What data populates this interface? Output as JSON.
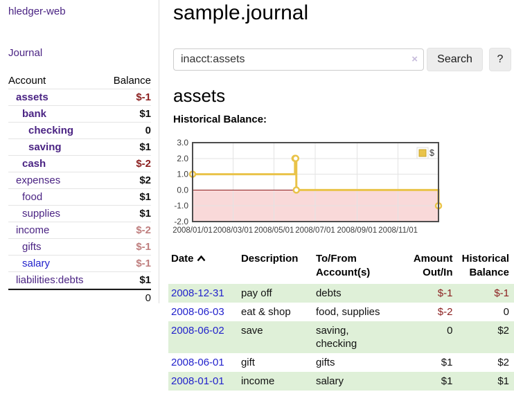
{
  "app": {
    "title": "hledger-web"
  },
  "sidebar": {
    "journal_link": "Journal",
    "accounts_table": {
      "headers": {
        "account": "Account",
        "balance": "Balance"
      },
      "rows": [
        {
          "name": "assets",
          "level": 1,
          "bold": true,
          "link_color": "purple",
          "balance": "$-1",
          "balance_style": "neg-strong"
        },
        {
          "name": "bank",
          "level": 2,
          "bold": true,
          "link_color": "purple",
          "balance": "$1",
          "balance_style": "pos"
        },
        {
          "name": "checking",
          "level": 3,
          "bold": true,
          "link_color": "purple",
          "balance": "0",
          "balance_style": "pos"
        },
        {
          "name": "saving",
          "level": 3,
          "bold": true,
          "link_color": "purple",
          "balance": "$1",
          "balance_style": "pos"
        },
        {
          "name": "cash",
          "level": 2,
          "bold": true,
          "link_color": "purple",
          "balance": "$-2",
          "balance_style": "neg-strong"
        },
        {
          "name": "expenses",
          "level": 1,
          "bold": false,
          "link_color": "purple",
          "balance": "$2",
          "balance_style": "pos"
        },
        {
          "name": "food",
          "level": 2,
          "bold": false,
          "link_color": "purple",
          "balance": "$1",
          "balance_style": "pos"
        },
        {
          "name": "supplies",
          "level": 2,
          "bold": false,
          "link_color": "purple",
          "balance": "$1",
          "balance_style": "pos"
        },
        {
          "name": "income",
          "level": 1,
          "bold": false,
          "link_color": "purple",
          "balance": "$-2",
          "balance_style": "neg-soft"
        },
        {
          "name": "gifts",
          "level": 2,
          "bold": false,
          "link_color": "purple",
          "balance": "$-1",
          "balance_style": "neg-soft"
        },
        {
          "name": "salary",
          "level": 2,
          "bold": false,
          "link_color": "blue",
          "balance": "$-1",
          "balance_style": "neg-soft"
        },
        {
          "name": "liabilities:debts",
          "level": 1,
          "bold": false,
          "link_color": "purple",
          "balance": "$1",
          "balance_style": "pos"
        }
      ],
      "total": "0"
    }
  },
  "header": {
    "title": "sample.journal"
  },
  "search": {
    "value": "inacct:assets",
    "clear_icon": "×",
    "search_label": "Search",
    "help_label": "?"
  },
  "account_page": {
    "heading": "assets",
    "chart_label": "Historical Balance:"
  },
  "chart_data": {
    "type": "line",
    "step": true,
    "title": "Historical Balance",
    "series": [
      {
        "name": "$",
        "color": "#e9c349",
        "points": [
          [
            "2008-01-01",
            1
          ],
          [
            "2008-06-01",
            2
          ],
          [
            "2008-06-02",
            2
          ],
          [
            "2008-06-03",
            0
          ],
          [
            "2008-12-31",
            -1
          ]
        ]
      }
    ],
    "x_range": [
      "2008-01-01",
      "2008-12-31"
    ],
    "x_ticks": [
      {
        "date": "2008-01-01",
        "label": "2008/01/01"
      },
      {
        "date": "2008-03-01",
        "label": "2008/03/01"
      },
      {
        "date": "2008-05-01",
        "label": "2008/05/01"
      },
      {
        "date": "2008-07-01",
        "label": "2008/07/01"
      },
      {
        "date": "2008-09-01",
        "label": "2008/09/01"
      },
      {
        "date": "2008-11-01",
        "label": "2008/11/01"
      }
    ],
    "ylim": [
      -2,
      3
    ],
    "y_ticks": [
      {
        "value": 3,
        "label": "3.0"
      },
      {
        "value": 2,
        "label": "2.0"
      },
      {
        "value": 1,
        "label": "1.0"
      },
      {
        "value": 0,
        "label": "0.0"
      },
      {
        "value": -1,
        "label": "-1.0"
      },
      {
        "value": -2,
        "label": "-2.0"
      }
    ],
    "legend": {
      "label": "$",
      "position": "top-right"
    },
    "grid": true,
    "negative_region_color": "#f9d9d9",
    "zero_line_color": "#8b1a1a",
    "grid_color": "#e3e3e3",
    "border_color": "#4d4d4d"
  },
  "transactions": {
    "columns": [
      {
        "line1": "Date",
        "line2": "",
        "align": "l",
        "sorted": "asc"
      },
      {
        "line1": "Description",
        "line2": "",
        "align": "l"
      },
      {
        "line1": "To/From",
        "line2": "Account(s)",
        "align": "l"
      },
      {
        "line1": "Amount",
        "line2": "Out/In",
        "align": "r"
      },
      {
        "line1": "Historical",
        "line2": "Balance",
        "align": "r"
      }
    ],
    "rows": [
      {
        "date": "2008-12-31",
        "description": "pay off",
        "accounts": "debts",
        "amount": "$-1",
        "balance": "$-1"
      },
      {
        "date": "2008-06-03",
        "description": "eat & shop",
        "accounts": "food, supplies",
        "amount": "$-2",
        "balance": "0"
      },
      {
        "date": "2008-06-02",
        "description": "save",
        "accounts": "saving, checking",
        "amount": "0",
        "balance": "$2"
      },
      {
        "date": "2008-06-01",
        "description": "gift",
        "accounts": "gifts",
        "amount": "$1",
        "balance": "$2"
      },
      {
        "date": "2008-01-01",
        "description": "income",
        "accounts": "salary",
        "amount": "$1",
        "balance": "$1"
      }
    ]
  },
  "colors": {
    "link_purple": "#4a2383",
    "link_blue": "#2222cc",
    "negative_strong": "#8b1f1f",
    "negative_soft": "#bf7e7e",
    "row_stripe_green": "#dff0d8",
    "series_gold": "#e9c349",
    "negative_region_pink": "#f9d9d9",
    "zero_line_red": "#8b1a1a"
  }
}
